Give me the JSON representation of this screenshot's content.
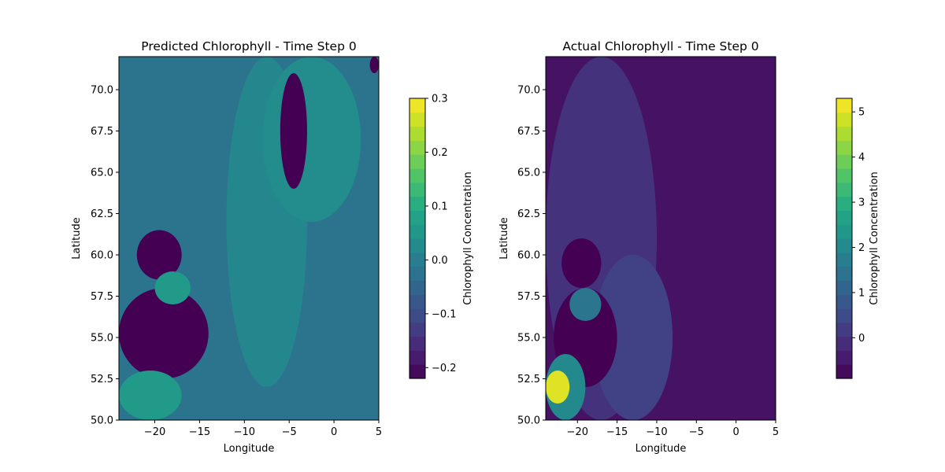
{
  "chart_data": [
    {
      "type": "heatmap",
      "title": "Predicted Chlorophyll - Time Step 0",
      "xlabel": "Longitude",
      "ylabel": "Latitude",
      "xlim": [
        -24,
        5
      ],
      "ylim": [
        50,
        72
      ],
      "xticks": [
        -20,
        -15,
        -10,
        -5,
        0,
        5
      ],
      "xtick_labels": [
        "−20",
        "−15",
        "−10",
        "−5",
        "0",
        "5"
      ],
      "yticks": [
        50.0,
        52.5,
        55.0,
        57.5,
        60.0,
        62.5,
        65.0,
        67.5,
        70.0
      ],
      "ytick_labels": [
        "50.0",
        "52.5",
        "55.0",
        "57.5",
        "60.0",
        "62.5",
        "65.0",
        "67.5",
        "70.0"
      ],
      "colormap": "viridis",
      "colorbar": {
        "label": "Chlorophyll Concentration",
        "vmin": -0.22,
        "vmax": 0.3,
        "ticks": [
          -0.2,
          -0.1,
          0.0,
          0.1,
          0.2,
          0.3
        ],
        "tick_labels": [
          "−0.2",
          "−0.1",
          "0.0",
          "0.1",
          "0.2",
          "0.3"
        ],
        "discrete_levels": 20
      },
      "background_value": -0.02,
      "features": [
        {
          "region": "central band",
          "lon": [
            -12,
            -3
          ],
          "lat": [
            52,
            72
          ],
          "value": 0.02
        },
        {
          "region": "northeast patch",
          "lon": [
            -8,
            3
          ],
          "lat": [
            62,
            72
          ],
          "value": 0.03
        },
        {
          "region": "low strip",
          "lon": [
            -6,
            -3
          ],
          "lat": [
            64,
            71
          ],
          "value": -0.22
        },
        {
          "region": "low blob",
          "lon": [
            -22,
            -17
          ],
          "lat": [
            58.5,
            61.5
          ],
          "value": -0.22
        },
        {
          "region": "low blob",
          "lon": [
            -24,
            -14
          ],
          "lat": [
            52.5,
            58
          ],
          "value": -0.22
        },
        {
          "region": "high streak",
          "lon": [
            -24,
            -17
          ],
          "lat": [
            50,
            53
          ],
          "value": 0.06
        },
        {
          "region": "high patch",
          "lon": [
            -20,
            -16
          ],
          "lat": [
            57,
            59
          ],
          "value": 0.06
        },
        {
          "region": "low corner",
          "lon": [
            4,
            5
          ],
          "lat": [
            71,
            72
          ],
          "value": -0.22
        }
      ]
    },
    {
      "type": "heatmap",
      "title": "Actual Chlorophyll - Time Step 0",
      "xlabel": "Longitude",
      "ylabel": "Latitude",
      "xlim": [
        -24,
        5
      ],
      "ylim": [
        50,
        72
      ],
      "xticks": [
        -20,
        -15,
        -10,
        -5,
        0,
        5
      ],
      "xtick_labels": [
        "−20",
        "−15",
        "−10",
        "−5",
        "0",
        "5"
      ],
      "yticks": [
        50.0,
        52.5,
        55.0,
        57.5,
        60.0,
        62.5,
        65.0,
        67.5,
        70.0
      ],
      "ytick_labels": [
        "50.0",
        "52.5",
        "55.0",
        "57.5",
        "60.0",
        "62.5",
        "65.0",
        "67.5",
        "70.0"
      ],
      "colormap": "viridis",
      "colorbar": {
        "label": "Chlorophyll Concentration",
        "vmin": -0.9,
        "vmax": 5.3,
        "ticks": [
          0,
          1,
          2,
          3,
          4,
          5
        ],
        "tick_labels": [
          "0",
          "1",
          "2",
          "3",
          "4",
          "5"
        ],
        "discrete_levels": 20
      },
      "background_value": -0.6,
      "features": [
        {
          "region": "western shelf",
          "lon": [
            -24,
            -10
          ],
          "lat": [
            50,
            72
          ],
          "value": 0.0
        },
        {
          "region": "shelf edge",
          "lon": [
            -18,
            -8
          ],
          "lat": [
            50,
            60
          ],
          "value": 0.3
        },
        {
          "region": "masked region",
          "lon": [
            -22,
            -17
          ],
          "lat": [
            58,
            61
          ],
          "value": -0.9
        },
        {
          "region": "masked region",
          "lon": [
            -23,
            -15
          ],
          "lat": [
            52,
            58
          ],
          "value": -0.9
        },
        {
          "region": "coastal high",
          "lon": [
            -24,
            -19
          ],
          "lat": [
            50,
            54
          ],
          "value": 2.0
        },
        {
          "region": "coastal peak",
          "lon": [
            -24,
            -21
          ],
          "lat": [
            51,
            53
          ],
          "value": 5.0
        },
        {
          "region": "nearshore patch",
          "lon": [
            -21,
            -17
          ],
          "lat": [
            56,
            58
          ],
          "value": 1.5
        }
      ]
    }
  ]
}
